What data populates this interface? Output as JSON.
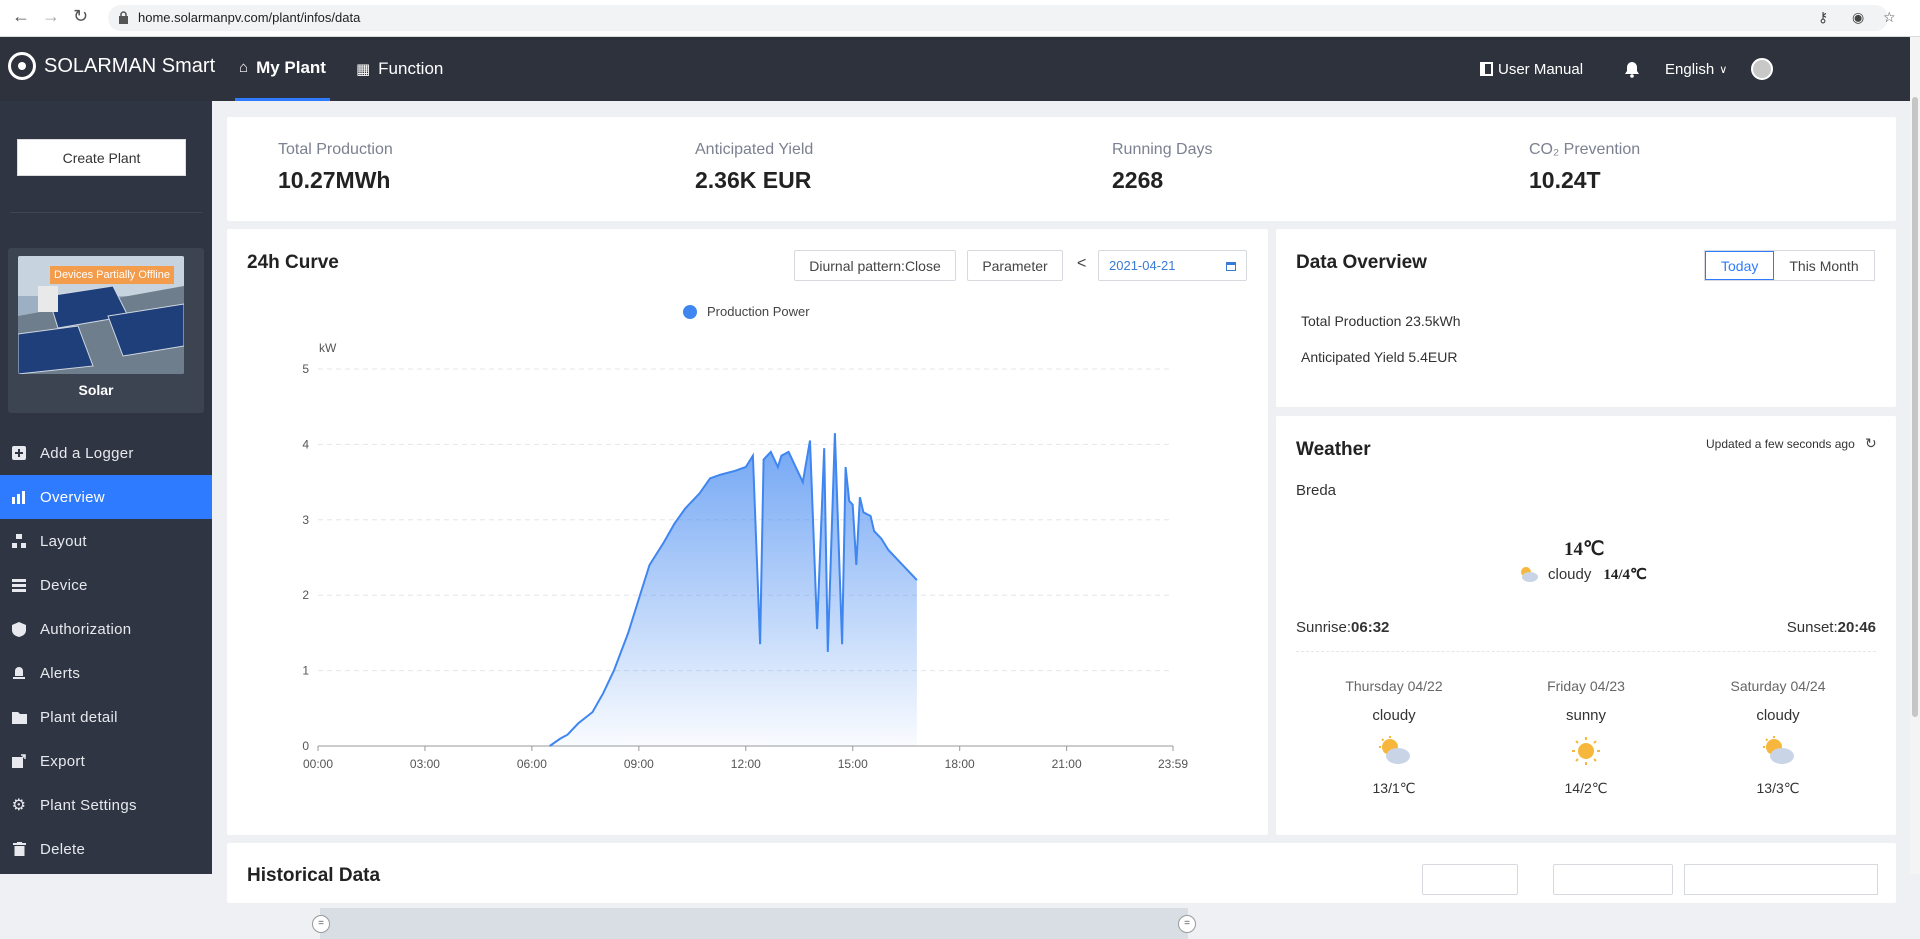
{
  "browser": {
    "url": "home.solarmanpv.com/plant/infos/data"
  },
  "header": {
    "brand": "SOLARMAN Smart",
    "tabs": [
      {
        "label": "My Plant",
        "icon": "home-icon",
        "active": true
      },
      {
        "label": "Function",
        "icon": "grid-icon",
        "active": false
      }
    ],
    "user_manual": "User Manual",
    "language": "English"
  },
  "sidebar": {
    "create_plant": "Create Plant",
    "plant": {
      "badge": "Devices Partially Offline",
      "name": "Solar"
    },
    "items": [
      {
        "label": "Add a Logger",
        "icon": "plus-square-icon",
        "active": false
      },
      {
        "label": "Overview",
        "icon": "chart-icon",
        "active": true
      },
      {
        "label": "Layout",
        "icon": "layout-icon",
        "active": false
      },
      {
        "label": "Device",
        "icon": "device-icon",
        "active": false
      },
      {
        "label": "Authorization",
        "icon": "shield-icon",
        "active": false
      },
      {
        "label": "Alerts",
        "icon": "alert-icon",
        "active": false
      },
      {
        "label": "Plant detail",
        "icon": "folder-icon",
        "active": false
      },
      {
        "label": "Export",
        "icon": "export-icon",
        "active": false
      },
      {
        "label": "Plant Settings",
        "icon": "gear-icon",
        "active": false
      },
      {
        "label": "Delete",
        "icon": "trash-icon",
        "active": false
      }
    ]
  },
  "stats": [
    {
      "label": "Total Production",
      "value": "10.27MWh"
    },
    {
      "label": "Anticipated Yield",
      "value": "2.36K EUR"
    },
    {
      "label": "Running Days",
      "value": "2268"
    },
    {
      "label": "CO₂ Prevention",
      "value": "10.24T"
    }
  ],
  "curve": {
    "title": "24h Curve",
    "diurnal_button": "Diurnal pattern:Close",
    "parameter_button": "Parameter",
    "prev_arrow": "<",
    "date": "2021-04-21"
  },
  "overview": {
    "title": "Data Overview",
    "today": "Today",
    "this_month": "This Month",
    "total_production": "Total Production 23.5kWh",
    "anticipated_yield": "Anticipated Yield 5.4EUR"
  },
  "weather": {
    "title": "Weather",
    "updated": "Updated a few seconds ago",
    "city": "Breda",
    "temp": "14℃",
    "condition": "cloudy",
    "range": "14/4℃",
    "sunrise_label": "Sunrise:",
    "sunrise": "06:32",
    "sunset_label": "Sunset:",
    "sunset": "20:46",
    "forecast": [
      {
        "day": "Thursday 04/22",
        "cond": "cloudy",
        "icon": "cloudy-sun-icon",
        "temp": "13/1℃"
      },
      {
        "day": "Friday 04/23",
        "cond": "sunny",
        "icon": "sun-icon",
        "temp": "14/2℃"
      },
      {
        "day": "Saturday 04/24",
        "cond": "cloudy",
        "icon": "cloudy-sun-icon",
        "temp": "13/3℃"
      }
    ]
  },
  "historical": {
    "title": "Historical Data"
  },
  "colors": {
    "accent": "#2f7bff",
    "topbar": "#2d323c",
    "sidebar": "#2f3542",
    "series": "#3f86f0"
  },
  "chart_data": {
    "type": "area",
    "title": "",
    "series_name": "Production Power",
    "ylabel": "kW",
    "ylim": [
      0,
      5
    ],
    "yticks": [
      "0",
      "1",
      "2",
      "3",
      "4",
      "5"
    ],
    "xlim": [
      "00:00",
      "23:59"
    ],
    "xticks": [
      "00:00",
      "03:00",
      "06:00",
      "09:00",
      "12:00",
      "15:00",
      "18:00",
      "21:00",
      "23:59"
    ],
    "x_hours": [
      0,
      6.5,
      6.8,
      7.0,
      7.3,
      7.7,
      8.0,
      8.3,
      8.7,
      9.0,
      9.3,
      9.7,
      10.0,
      10.3,
      10.7,
      11.0,
      11.3,
      11.7,
      12.0,
      12.2,
      12.4,
      12.5,
      12.7,
      12.9,
      13.0,
      13.2,
      13.4,
      13.6,
      13.8,
      14.0,
      14.2,
      14.3,
      14.5,
      14.7,
      14.8,
      14.9,
      15.0,
      15.1,
      15.2,
      15.3,
      15.5,
      15.6,
      15.8,
      16.0,
      16.3,
      16.6,
      16.8
    ],
    "values": [
      0,
      0,
      0.1,
      0.15,
      0.3,
      0.45,
      0.7,
      1.0,
      1.5,
      1.95,
      2.4,
      2.7,
      2.95,
      3.15,
      3.35,
      3.55,
      3.6,
      3.65,
      3.7,
      3.85,
      1.35,
      3.8,
      3.9,
      3.7,
      3.85,
      3.9,
      3.7,
      3.5,
      4.05,
      1.55,
      3.95,
      1.25,
      4.15,
      1.35,
      3.7,
      3.25,
      3.2,
      2.4,
      3.3,
      3.1,
      3.05,
      2.85,
      2.75,
      2.6,
      2.45,
      2.3,
      2.2
    ]
  }
}
